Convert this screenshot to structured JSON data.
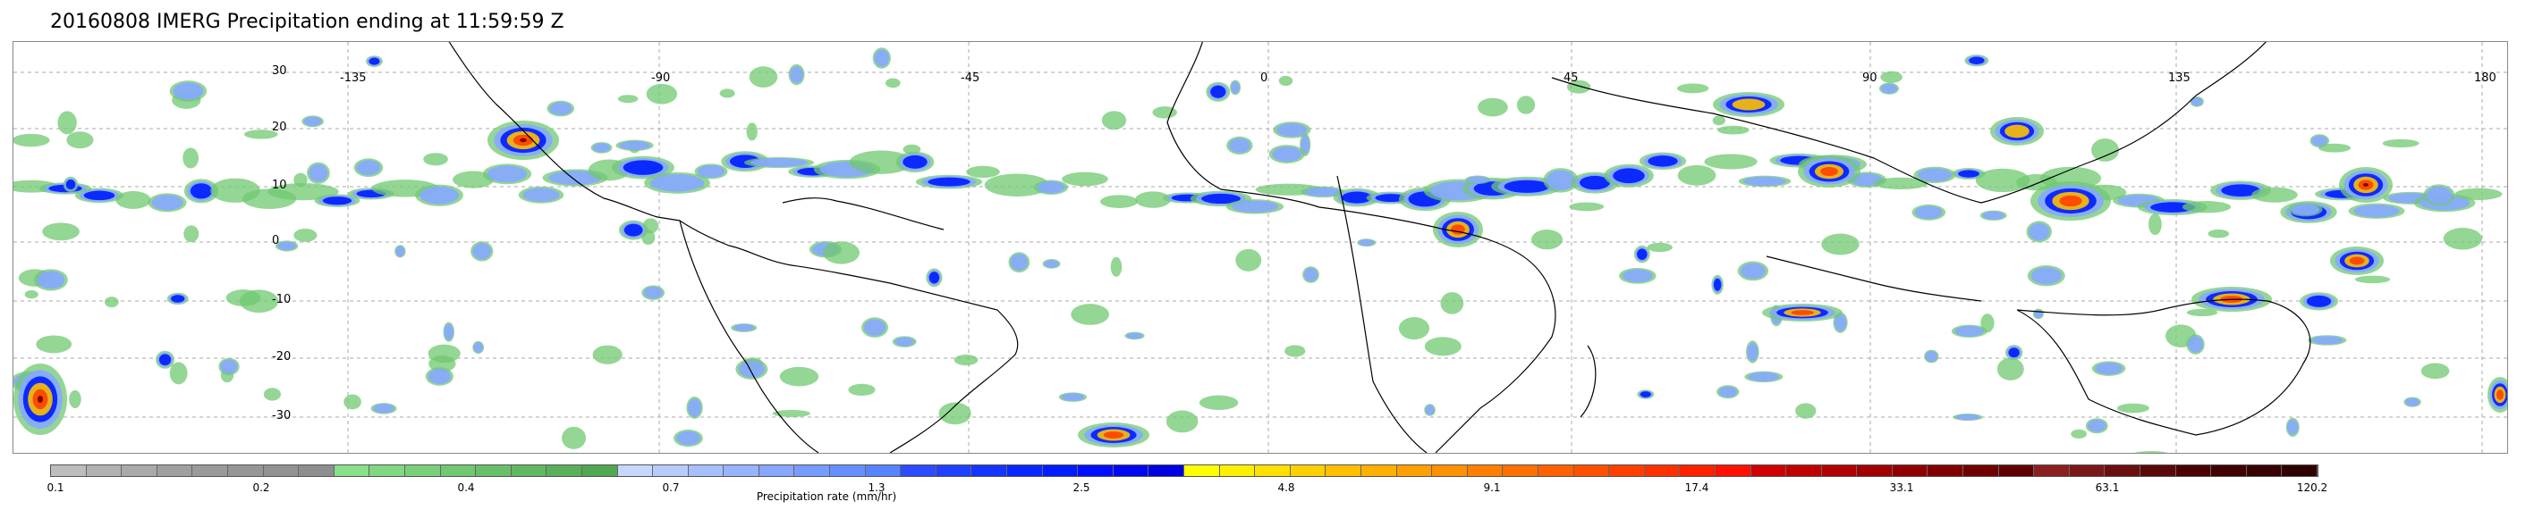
{
  "title": "20160808 IMERG Precipitation ending at 11:59:59 Z",
  "map": {
    "lon_labels": [
      "-135",
      "-90",
      "-45",
      "0",
      "45",
      "90",
      "135",
      "180"
    ],
    "lat_labels": [
      "30",
      "20",
      "10",
      "0",
      "-10",
      "-20",
      "-30"
    ],
    "gridlines": "dashed",
    "projection": "equirectangular"
  },
  "colorbar": {
    "label": "Precipitation rate (mm/hr)",
    "tick_labels": [
      "0.1",
      "0.2",
      "0.4",
      "0.7",
      "1.3",
      "2.5",
      "4.8",
      "9.1",
      "17.4",
      "33.1",
      "63.1",
      "120.2"
    ],
    "colors": [
      "#bdbdbd",
      "#b2b2b2",
      "#a9a9a9",
      "#a0a0a0",
      "#9a9a9a",
      "#969696",
      "#929292",
      "#8e8e8e",
      "#88e088",
      "#80d880",
      "#78d078",
      "#70c870",
      "#68c068",
      "#60b860",
      "#58b058",
      "#50a850",
      "#c6d8ff",
      "#b6ccff",
      "#a6c0ff",
      "#96b4ff",
      "#86a8ff",
      "#769cff",
      "#6690ff",
      "#5684ff",
      "#2c4cff",
      "#2040ff",
      "#1434ff",
      "#0828ff",
      "#001cff",
      "#0010ff",
      "#0008f0",
      "#0000e0",
      "#ffff00",
      "#fff000",
      "#ffe000",
      "#ffd000",
      "#ffc000",
      "#ffb000",
      "#ffa000",
      "#ff9000",
      "#ff8000",
      "#ff7000",
      "#ff6000",
      "#ff5000",
      "#ff4000",
      "#ff3000",
      "#ff2000",
      "#ff1000",
      "#d00000",
      "#c00000",
      "#b00000",
      "#a00000",
      "#900000",
      "#800000",
      "#700000",
      "#600000",
      "#8a2020",
      "#7a1818",
      "#6a1010",
      "#5a0808",
      "#4a0000",
      "#400000",
      "#380000",
      "#300000"
    ]
  }
}
